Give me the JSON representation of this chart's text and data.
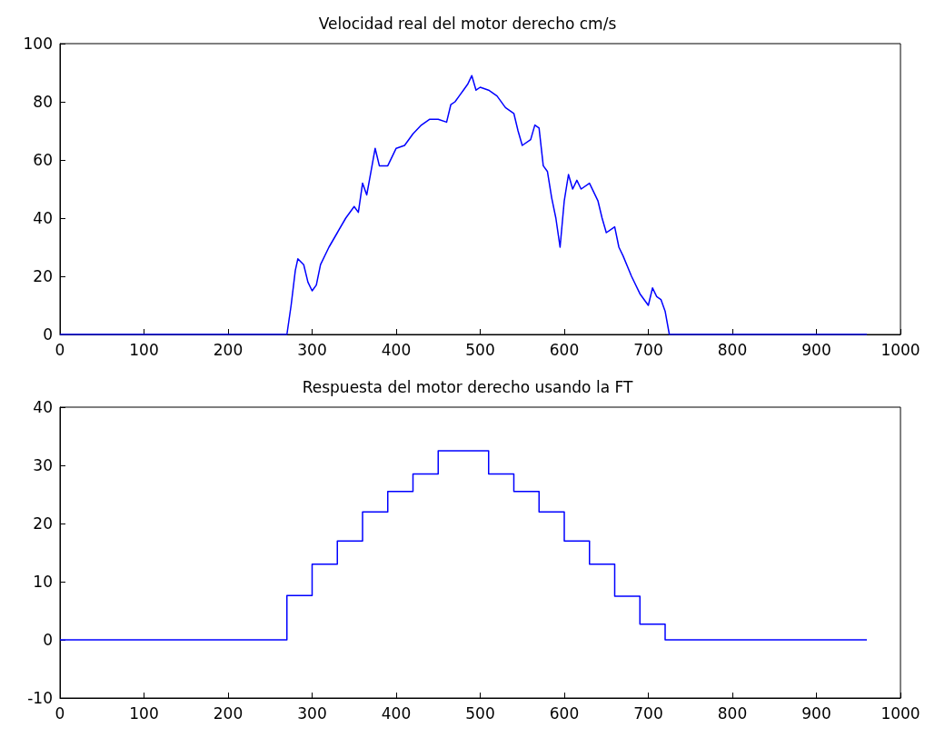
{
  "chart_data": [
    {
      "type": "line",
      "title": "Velocidad real del motor derecho cm/s",
      "xlim": [
        0,
        1000
      ],
      "xticks": [
        0,
        100,
        200,
        300,
        400,
        500,
        600,
        700,
        800,
        900,
        1000
      ],
      "ylim": [
        0,
        100
      ],
      "yticks": [
        0,
        20,
        40,
        60,
        80,
        100
      ],
      "grid": false,
      "marker": "none",
      "line_style": "solid",
      "series": [
        {
          "color": "#0000ff",
          "x": [
            0,
            270,
            275,
            280,
            283,
            290,
            295,
            300,
            305,
            310,
            320,
            330,
            340,
            350,
            355,
            360,
            365,
            370,
            375,
            380,
            390,
            400,
            410,
            420,
            430,
            440,
            450,
            460,
            465,
            470,
            475,
            480,
            485,
            490,
            495,
            500,
            510,
            520,
            530,
            540,
            545,
            550,
            560,
            565,
            570,
            575,
            580,
            585,
            590,
            595,
            600,
            605,
            610,
            615,
            620,
            630,
            640,
            645,
            650,
            660,
            665,
            670,
            680,
            690,
            700,
            705,
            710,
            715,
            720,
            725,
            960
          ],
          "values": [
            0,
            0,
            10,
            22,
            26,
            24,
            18,
            15,
            17,
            24,
            30,
            35,
            40,
            44,
            42,
            52,
            48,
            56,
            64,
            58,
            58,
            64,
            65,
            69,
            72,
            74,
            74,
            73,
            79,
            80,
            82,
            84,
            86,
            89,
            84,
            85,
            84,
            82,
            78,
            76,
            70,
            65,
            67,
            72,
            71,
            58,
            56,
            47,
            40,
            30,
            46,
            55,
            50,
            53,
            50,
            52,
            46,
            40,
            35,
            37,
            30,
            27,
            20,
            14,
            10,
            16,
            13,
            12,
            8,
            0,
            0
          ]
        }
      ]
    },
    {
      "type": "step",
      "title": "Respuesta del motor derecho usando la FT",
      "xlim": [
        0,
        1000
      ],
      "xticks": [
        0,
        100,
        200,
        300,
        400,
        500,
        600,
        700,
        800,
        900,
        1000
      ],
      "ylim": [
        -10,
        40
      ],
      "yticks": [
        -10,
        0,
        10,
        20,
        30,
        40
      ],
      "grid": false,
      "marker": "none",
      "line_style": "solid",
      "series": [
        {
          "color": "#0000ff",
          "x": [
            0,
            270,
            300,
            330,
            360,
            390,
            420,
            450,
            510,
            540,
            570,
            600,
            630,
            660,
            690,
            720,
            960
          ],
          "values": [
            0,
            7.6,
            13,
            17,
            22,
            25.5,
            28.5,
            32.5,
            28.5,
            25.5,
            22,
            17,
            13,
            7.5,
            2.7,
            0,
            0
          ]
        }
      ]
    }
  ]
}
